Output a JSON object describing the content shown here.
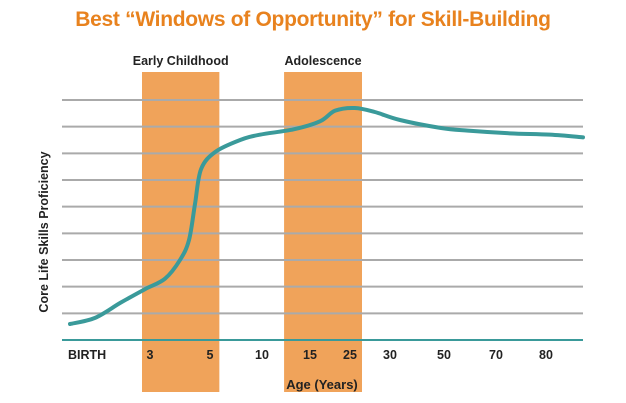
{
  "chart_data": {
    "type": "line",
    "title": "Best “Windows of Opportunity” for Skill-Building",
    "xlabel": "Age (Years)",
    "ylabel": "Core Life Skills Proficiency",
    "x_ticks": [
      {
        "label": "BIRTH",
        "age": 0
      },
      {
        "label": "3",
        "age": 3
      },
      {
        "label": "5",
        "age": 5
      },
      {
        "label": "10",
        "age": 10
      },
      {
        "label": "15",
        "age": 15
      },
      {
        "label": "25",
        "age": 25
      },
      {
        "label": "30",
        "age": 30
      },
      {
        "label": "50",
        "age": 50
      },
      {
        "label": "70",
        "age": 70
      },
      {
        "label": "80",
        "age": 80
      }
    ],
    "ylim": [
      0,
      9
    ],
    "grid": true,
    "y_gridlines": 9,
    "bands": [
      {
        "label": "Early Childhood",
        "age_range": [
          2.7,
          5.9
        ]
      },
      {
        "label": "Adolescence",
        "age_range": [
          12.3,
          26.5
        ]
      }
    ],
    "series": [
      {
        "points": [
          [
            0,
            0.6
          ],
          [
            0.94,
            0.83
          ],
          [
            1.9,
            1.4
          ],
          [
            2.8,
            1.9
          ],
          [
            3.5,
            2.3
          ],
          [
            4.0,
            3.0
          ],
          [
            4.3,
            3.75
          ],
          [
            4.5,
            5.1
          ],
          [
            4.7,
            6.4
          ],
          [
            5.5,
            7.05
          ],
          [
            7.9,
            7.5
          ],
          [
            9.8,
            7.7
          ],
          [
            13.3,
            7.9
          ],
          [
            17.5,
            8.2
          ],
          [
            21.3,
            8.6
          ],
          [
            25.6,
            8.7
          ],
          [
            28.1,
            8.55
          ],
          [
            33.7,
            8.25
          ],
          [
            48.9,
            7.95
          ],
          [
            59.2,
            7.85
          ],
          [
            72.8,
            7.75
          ],
          [
            80.8,
            7.7
          ],
          [
            87.4,
            7.6
          ]
        ]
      }
    ],
    "colors": {
      "title": "#E8821E",
      "band": "#F0A35A",
      "line": "#3A9A9A",
      "grid": "#AAAAAA",
      "axis": "#3A9A9A"
    }
  }
}
